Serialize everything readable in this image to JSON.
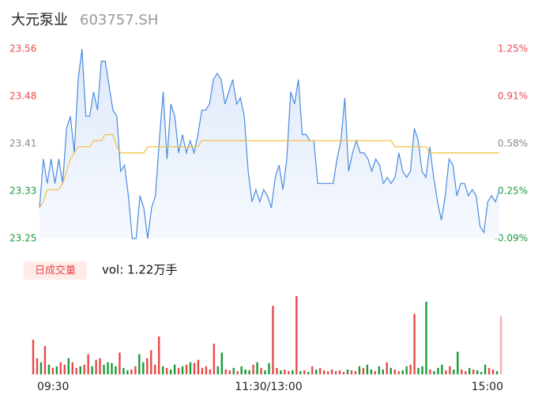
{
  "chart_data": {
    "type": "intraday",
    "title": "大元泵业",
    "subtitle": "603757.SH",
    "categories": [
      "09:30",
      null,
      null,
      null,
      null,
      null,
      null,
      null,
      null,
      null,
      null,
      null,
      null,
      null,
      null,
      null,
      null,
      null,
      null,
      null,
      null,
      null,
      null,
      null,
      null,
      null,
      null,
      null,
      null,
      null,
      null,
      null,
      null,
      null,
      null,
      null,
      null,
      null,
      null,
      null,
      null,
      null,
      null,
      null,
      null,
      null,
      null,
      null,
      null,
      null,
      null,
      null,
      null,
      null,
      null,
      null,
      null,
      null,
      null,
      null,
      "11:30/13:00",
      null,
      null,
      null,
      null,
      null,
      null,
      null,
      null,
      null,
      null,
      null,
      null,
      null,
      null,
      null,
      null,
      null,
      null,
      null,
      null,
      null,
      null,
      null,
      null,
      null,
      null,
      null,
      null,
      null,
      null,
      null,
      null,
      null,
      null,
      null,
      null,
      null,
      null,
      null,
      null,
      null,
      null,
      null,
      null,
      null,
      null,
      null,
      null,
      null,
      null,
      null,
      null,
      null,
      null,
      null,
      null,
      null,
      null,
      "15:00"
    ],
    "ylim": [
      23.25,
      23.56
    ],
    "yticks": [
      23.25,
      {
        "value": 23.3275,
        "label": "23.33"
      },
      {
        "value": 23.405,
        "label": "23.41"
      },
      {
        "value": 23.4825,
        "label": "23.48"
      },
      23.56
    ],
    "ytick_colors": [
      "#1a9b3a",
      "#1a9b3a",
      "#888888",
      "#e84a4a",
      "#e84a4a"
    ],
    "y2lim": [
      -0.09,
      1.25
    ],
    "y2ticks": [
      {
        "value": -0.09,
        "label": "-0.09%"
      },
      {
        "value": 0.245,
        "label": "0.25%"
      },
      {
        "value": 0.58,
        "label": "0.58%"
      },
      {
        "value": 0.915,
        "label": "0.91%"
      },
      {
        "value": 1.25,
        "label": "1.25%"
      }
    ],
    "y2tick_colors": [
      "#1a9b3a",
      "#1a9b3a",
      "#888888",
      "#e84a4a",
      "#e84a4a"
    ],
    "series": [
      {
        "color": "#4a8be0",
        "values": [
          23.3,
          23.38,
          23.34,
          23.38,
          23.34,
          23.38,
          23.34,
          23.43,
          23.45,
          23.39,
          23.51,
          23.56,
          23.45,
          23.45,
          23.49,
          23.46,
          23.54,
          23.54,
          23.5,
          23.46,
          23.45,
          23.36,
          23.37,
          23.32,
          23.25,
          23.25,
          23.32,
          23.3,
          23.25,
          23.3,
          23.32,
          23.41,
          23.49,
          23.38,
          23.47,
          23.45,
          23.39,
          23.42,
          23.39,
          23.41,
          23.39,
          23.42,
          23.46,
          23.46,
          23.47,
          23.51,
          23.52,
          23.51,
          23.47,
          23.49,
          23.51,
          23.47,
          23.48,
          23.45,
          23.36,
          23.31,
          23.33,
          23.31,
          23.33,
          23.32,
          23.3,
          23.35,
          23.37,
          23.33,
          23.38,
          23.49,
          23.47,
          23.51,
          23.42,
          23.42,
          23.41,
          23.41,
          23.34,
          23.34,
          23.34,
          23.34,
          23.34,
          23.38,
          23.41,
          23.48,
          23.36,
          23.39,
          23.41,
          23.39,
          23.39,
          23.38,
          23.36,
          23.38,
          23.37,
          23.34,
          23.35,
          23.34,
          23.35,
          23.39,
          23.36,
          23.35,
          23.36,
          23.43,
          23.41,
          23.36,
          23.35,
          23.4,
          23.35,
          23.31,
          23.28,
          23.32,
          23.38,
          23.37,
          23.32,
          23.34,
          23.34,
          23.32,
          23.33,
          23.32,
          23.27,
          23.26,
          23.31,
          23.32,
          23.31,
          23.33
        ]
      },
      {
        "color": "#f0c040",
        "values": [
          23.3,
          23.31,
          23.33,
          23.33,
          23.33,
          23.33,
          23.34,
          23.36,
          23.38,
          23.39,
          23.4,
          23.4,
          23.4,
          23.4,
          23.41,
          23.41,
          23.41,
          23.42,
          23.42,
          23.42,
          23.4,
          23.39,
          23.39,
          23.39,
          23.39,
          23.39,
          23.39,
          23.39,
          23.4,
          23.4,
          23.4,
          23.4,
          23.4,
          23.4,
          23.4,
          23.4,
          23.4,
          23.4,
          23.4,
          23.4,
          23.4,
          23.4,
          23.41,
          23.41,
          23.41,
          23.41,
          23.41,
          23.41,
          23.41,
          23.41,
          23.41,
          23.41,
          23.41,
          23.41,
          23.41,
          23.41,
          23.41,
          23.41,
          23.41,
          23.41,
          23.41,
          23.41,
          23.41,
          23.41,
          23.41,
          23.41,
          23.41,
          23.41,
          23.41,
          23.41,
          23.41,
          23.41,
          23.41,
          23.41,
          23.41,
          23.41,
          23.41,
          23.41,
          23.41,
          23.41,
          23.41,
          23.41,
          23.41,
          23.41,
          23.41,
          23.41,
          23.41,
          23.41,
          23.41,
          23.41,
          23.41,
          23.41,
          23.4,
          23.4,
          23.4,
          23.4,
          23.4,
          23.4,
          23.4,
          23.4,
          23.4,
          23.39,
          23.39,
          23.39,
          23.39,
          23.39,
          23.39,
          23.39,
          23.39,
          23.39,
          23.39,
          23.39,
          23.39,
          23.39,
          23.39,
          23.39,
          23.39,
          23.39,
          23.39,
          23.39
        ]
      },
      {
        "name": "日成交量",
        "up_color": "#e84a4a",
        "down_color": "#1a9b3a",
        "values": [
          43,
          20,
          15,
          35,
          12,
          8,
          10,
          15,
          12,
          20,
          15,
          8,
          10,
          12,
          25,
          10,
          18,
          20,
          12,
          15,
          14,
          10,
          27,
          8,
          5,
          6,
          10,
          25,
          15,
          20,
          30,
          12,
          47,
          10,
          8,
          6,
          12,
          8,
          10,
          12,
          15,
          14,
          18,
          8,
          10,
          6,
          38,
          10,
          27,
          6,
          5,
          8,
          4,
          10,
          6,
          5,
          12,
          15,
          8,
          5,
          14,
          85,
          8,
          5,
          6,
          4,
          5,
          97,
          4,
          5,
          3,
          10,
          6,
          8,
          5,
          4,
          6,
          4,
          5,
          3,
          6,
          5,
          4,
          10,
          8,
          12,
          6,
          4,
          10,
          6,
          15,
          8,
          6,
          4,
          5,
          10,
          12,
          75,
          8,
          10,
          90,
          6,
          4,
          8,
          12,
          5,
          10,
          6,
          28,
          6,
          4,
          8,
          6,
          5,
          3,
          12,
          8,
          6,
          4,
          72
        ]
      }
    ],
    "volume_label": "vol: 1.22万手"
  }
}
